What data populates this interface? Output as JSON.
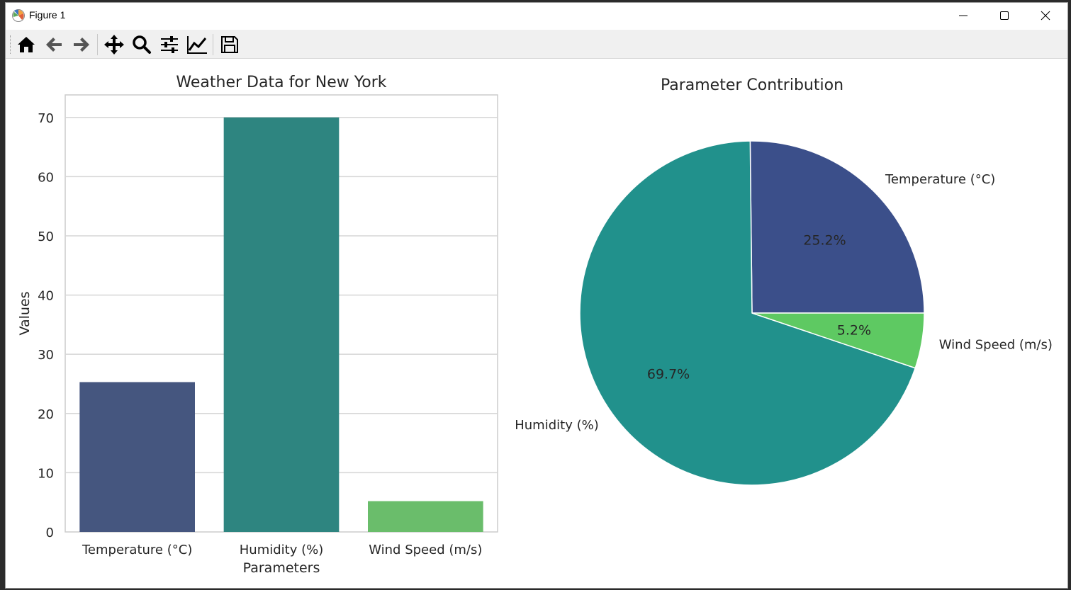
{
  "window": {
    "title": "Figure 1"
  },
  "toolbar": {
    "buttons": [
      {
        "name": "home-icon",
        "tooltip": "Reset original view"
      },
      {
        "name": "back-arrow-icon",
        "tooltip": "Back"
      },
      {
        "name": "forward-arrow-icon",
        "tooltip": "Forward"
      },
      {
        "name": "pan-icon",
        "tooltip": "Pan"
      },
      {
        "name": "zoom-icon",
        "tooltip": "Zoom"
      },
      {
        "name": "subplots-icon",
        "tooltip": "Configure subplots"
      },
      {
        "name": "edit-axis-icon",
        "tooltip": "Edit axis"
      },
      {
        "name": "save-icon",
        "tooltip": "Save"
      }
    ]
  },
  "colors": {
    "temperature": "#3b4f8a",
    "humidity": "#21918c",
    "wind": "#5ec962",
    "bar_temperature": "#45567f",
    "bar_humidity": "#2e8580",
    "bar_wind": "#6abd6b"
  },
  "chart_data": [
    {
      "type": "bar",
      "title": "Weather Data for New York",
      "xlabel": "Parameters",
      "ylabel": "Values",
      "categories": [
        "Temperature (°C)",
        "Humidity (%)",
        "Wind Speed (m/s)"
      ],
      "values": [
        25.3,
        70,
        5.2
      ],
      "ylim": [
        0,
        73.8
      ],
      "yticks": [
        0,
        10,
        20,
        30,
        40,
        50,
        60,
        70
      ],
      "grid": true
    },
    {
      "type": "pie",
      "title": "Parameter Contribution",
      "labels": [
        "Temperature (°C)",
        "Humidity (%)",
        "Wind Speed (m/s)"
      ],
      "values": [
        25.3,
        70,
        5.2
      ],
      "autopct": [
        "25.2%",
        "69.7%",
        "5.2%"
      ],
      "startangle": 0
    }
  ]
}
